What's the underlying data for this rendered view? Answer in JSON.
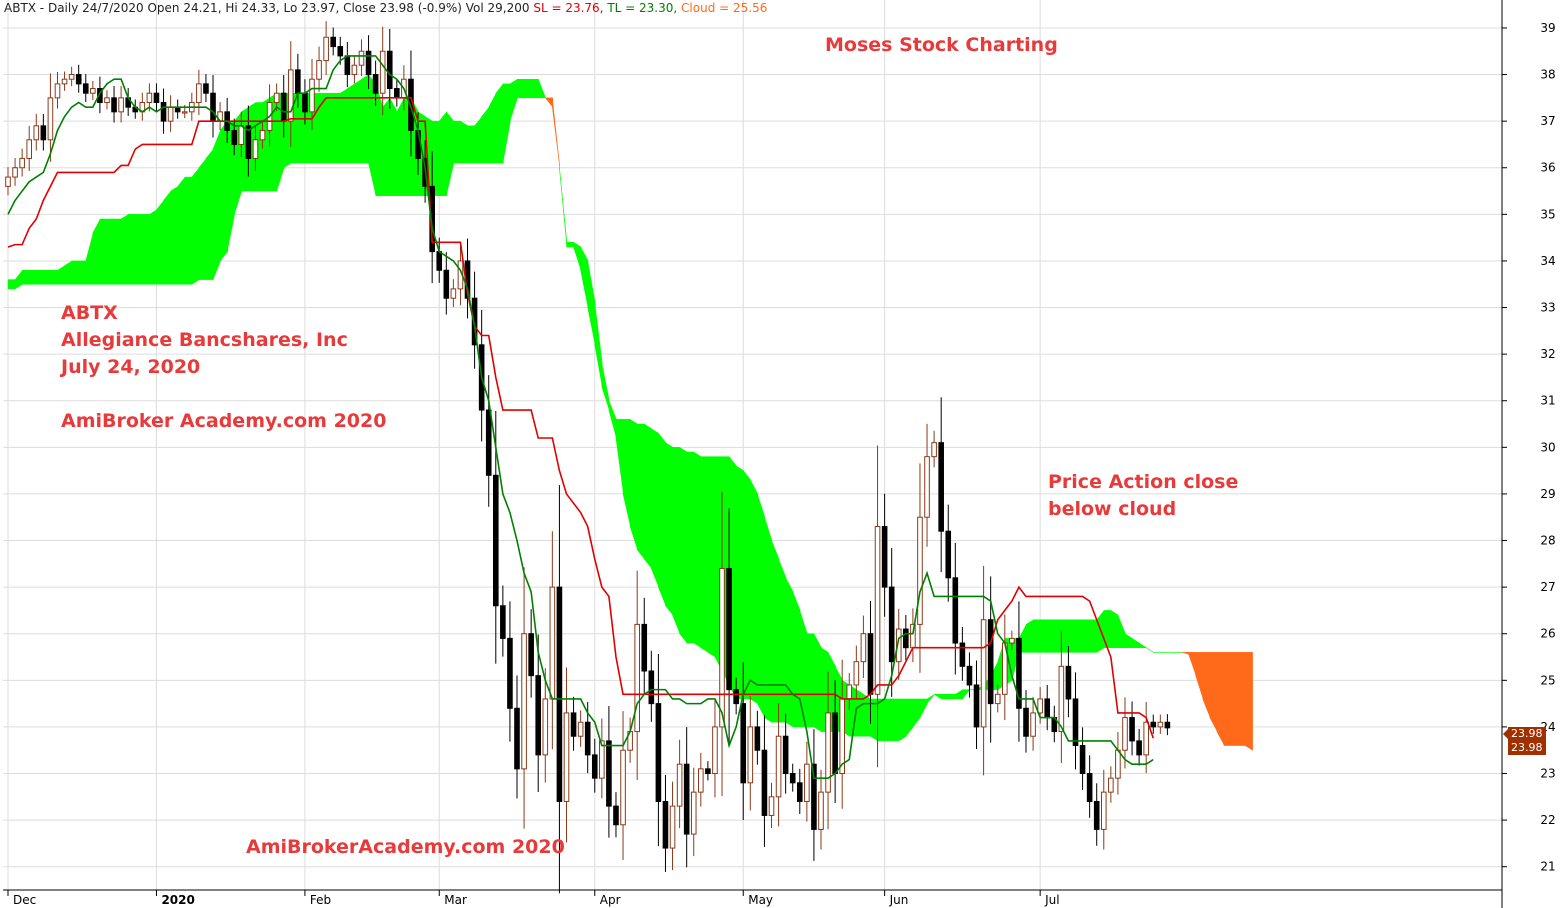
{
  "header": {
    "symbol_info": "ABTX - Daily 24/7/2020 Open 24.21, Hi 24.33, Lo 23.97, Close 23.98 (-0.9%) Vol 29,200",
    "sl_text": "SL = 23.76,",
    "tl_text": "TL = 23.30,",
    "cloud_text": "Cloud = 25.56"
  },
  "annotations": {
    "moses": "Moses Stock Charting",
    "ticker": "ABTX",
    "company": "Allegiance Bancshares, Inc",
    "date": "July 24, 2020",
    "academy_left": "AmiBroker Academy.com  2020",
    "academy_bottom": "AmiBrokerAcademy.com  2020",
    "price_action_1": "Price Action close",
    "price_action_2": "below cloud"
  },
  "price_tags": [
    "23.98",
    "23.98"
  ],
  "colors": {
    "bull_cloud": "#00ff00",
    "bear_cloud": "#ff6a1a",
    "kijun": "#e00000",
    "tenkan": "#008000",
    "bull_candle": "#8b3a1a",
    "bear_candle": "#000000",
    "grid": "#dddddd",
    "annotation": "#e83a3a"
  },
  "chart_data": {
    "type": "candlestick",
    "ylim": [
      20.5,
      39.6
    ],
    "y_ticks": [
      21,
      22,
      23,
      24,
      25,
      26,
      27,
      28,
      29,
      30,
      31,
      32,
      33,
      34,
      35,
      36,
      37,
      38,
      39
    ],
    "x_ticks": [
      {
        "label": "Dec",
        "bar": 0
      },
      {
        "label": "2020",
        "bar": 21
      },
      {
        "label": "Feb",
        "bar": 42
      },
      {
        "label": "Mar",
        "bar": 61
      },
      {
        "label": "Apr",
        "bar": 83
      },
      {
        "label": "May",
        "bar": 104
      },
      {
        "label": "Jun",
        "bar": 124
      },
      {
        "label": "Jul",
        "bar": 146
      }
    ],
    "total_bars": 188,
    "price_bars": 163,
    "close": [
      35.8,
      36.0,
      36.2,
      36.6,
      36.9,
      36.6,
      37.5,
      37.8,
      37.9,
      38.0,
      37.8,
      37.6,
      37.7,
      37.4,
      37.5,
      37.2,
      37.5,
      37.3,
      37.2,
      37.4,
      37.6,
      37.4,
      37.0,
      37.3,
      37.2,
      37.2,
      37.4,
      37.8,
      37.6,
      37.0,
      37.2,
      36.8,
      36.5,
      36.9,
      36.2,
      36.6,
      36.8,
      37.4,
      37.6,
      37.0,
      38.1,
      37.6,
      37.2,
      37.9,
      38.3,
      38.8,
      38.6,
      38.4,
      38.0,
      38.2,
      38.5,
      38.0,
      37.6,
      38.5,
      37.7,
      37.5,
      37.9,
      36.8,
      36.2,
      35.6,
      34.2,
      33.8,
      33.2,
      33.4,
      34.0,
      33.2,
      32.2,
      30.8,
      29.4,
      26.6,
      25.9,
      24.4,
      23.1,
      26.0,
      25.1,
      23.4,
      24.6,
      27.0,
      22.4,
      24.3,
      23.8,
      24.1,
      23.4,
      22.9,
      23.7,
      22.3,
      21.9,
      23.5,
      23.9,
      26.2,
      25.2,
      24.5,
      22.4,
      21.4,
      22.3,
      23.2,
      21.7,
      22.6,
      23.1,
      23.0,
      24.0,
      27.4,
      24.8,
      24.5,
      22.8,
      24.0,
      23.5,
      22.1,
      22.5,
      23.8,
      23.0,
      22.8,
      22.4,
      23.2,
      21.8,
      22.6,
      24.3,
      23.0,
      24.6,
      24.9,
      25.4,
      26.0,
      24.7,
      28.3,
      27.0,
      25.4,
      26.1,
      25.7,
      26.2,
      28.5,
      29.8,
      30.1,
      28.2,
      27.2,
      25.8,
      25.3,
      24.9,
      24.0,
      26.3,
      24.5,
      24.7,
      25.8,
      25.9,
      24.4,
      23.8,
      24.3,
      24.6,
      24.2,
      23.9,
      25.3,
      24.6,
      23.6,
      23.0,
      22.4,
      21.8,
      22.6,
      22.9,
      23.5,
      24.2,
      23.7,
      23.4,
      24.1,
      24.0,
      24.1,
      23.98
    ],
    "series": [
      {
        "name": "SL",
        "values": [
          34.3,
          34.35,
          34.35,
          34.7,
          34.9,
          35.3,
          35.6,
          35.9,
          35.9,
          35.9,
          35.9,
          35.9,
          35.9,
          35.9,
          35.9,
          35.9,
          36.05,
          36.05,
          36.4,
          36.5,
          36.5,
          36.5,
          36.5,
          36.5,
          36.5,
          36.5,
          36.5,
          37.0,
          37.0,
          37.0,
          37.0,
          37.0,
          37.0,
          37.0,
          37.0,
          37.0,
          37.0,
          37.0,
          37.0,
          37.0,
          37.05,
          37.05,
          37.05,
          37.05,
          37.3,
          37.5,
          37.5,
          37.5,
          37.5,
          37.5,
          37.5,
          37.5,
          37.5,
          37.5,
          37.5,
          37.5,
          37.5,
          37.5,
          37.0,
          37.0,
          34.4,
          34.4,
          34.4,
          34.4,
          34.4,
          33.3,
          32.6,
          32.4,
          32.4,
          31.5,
          30.8,
          30.8,
          30.8,
          30.8,
          30.8,
          30.2,
          30.2,
          30.2,
          29.5,
          29.0,
          28.8,
          28.6,
          28.3,
          27.6,
          27.0,
          26.8,
          25.5,
          24.7,
          24.7,
          24.7,
          24.7,
          24.7,
          24.7,
          24.7,
          24.7,
          24.7,
          24.7,
          24.7,
          24.7,
          24.7,
          24.7,
          24.7,
          24.7,
          24.7,
          24.7,
          24.7,
          24.7,
          24.7,
          24.7,
          24.7,
          24.7,
          24.7,
          24.7,
          24.7,
          24.7,
          24.7,
          24.7,
          24.7,
          24.6,
          24.6,
          24.6,
          24.6,
          24.7,
          24.9,
          24.9,
          24.9,
          25.1,
          25.4,
          25.7,
          25.7,
          25.7,
          25.7,
          25.7,
          25.7,
          25.7,
          25.7,
          25.7,
          25.7,
          25.7,
          25.8,
          26.3,
          26.5,
          26.7,
          27.0,
          26.8,
          26.8,
          26.8,
          26.8,
          26.8,
          26.8,
          26.8,
          26.8,
          26.8,
          26.7,
          26.3,
          25.9,
          25.5,
          24.3,
          24.3,
          24.3,
          24.3,
          24.2,
          23.76
        ]
      },
      {
        "name": "TL",
        "values": [
          35.0,
          35.3,
          35.5,
          35.7,
          35.8,
          35.9,
          36.3,
          36.8,
          37.1,
          37.3,
          37.4,
          37.3,
          37.3,
          37.6,
          37.8,
          37.9,
          37.9,
          37.5,
          37.3,
          37.2,
          37.3,
          37.2,
          37.3,
          37.3,
          37.3,
          37.3,
          37.3,
          37.3,
          37.3,
          37.2,
          37.0,
          37.0,
          36.9,
          36.9,
          36.8,
          36.9,
          37.0,
          37.1,
          37.3,
          37.2,
          37.2,
          37.6,
          37.6,
          37.7,
          37.7,
          37.7,
          38.1,
          38.3,
          38.4,
          38.4,
          38.4,
          38.4,
          38.4,
          38.2,
          38.0,
          37.9,
          37.7,
          37.3,
          36.8,
          36.0,
          34.7,
          34.2,
          34.1,
          34.0,
          33.8,
          33.4,
          32.6,
          31.5,
          31.0,
          30.0,
          29.0,
          28.6,
          28.0,
          27.3,
          26.9,
          25.6,
          25.0,
          24.6,
          24.6,
          24.6,
          24.6,
          24.6,
          24.3,
          24.1,
          23.6,
          23.6,
          23.6,
          23.6,
          23.9,
          24.5,
          24.7,
          24.8,
          24.8,
          24.8,
          24.6,
          24.6,
          24.5,
          24.5,
          24.5,
          24.6,
          24.6,
          24.3,
          23.6,
          24.0,
          24.7,
          25.0,
          24.9,
          24.9,
          24.9,
          24.9,
          24.9,
          24.7,
          24.6,
          23.9,
          22.9,
          22.9,
          22.9,
          23.0,
          23.2,
          23.3,
          24.4,
          24.5,
          24.5,
          24.5,
          24.6,
          25.1,
          25.9,
          26.0,
          26.0,
          26.9,
          27.3,
          26.8,
          26.8,
          26.8,
          26.8,
          26.8,
          26.8,
          26.8,
          26.8,
          26.7,
          26.0,
          25.8,
          25.1,
          24.6,
          24.6,
          24.6,
          24.2,
          24.2,
          24.2,
          24.0,
          23.7,
          23.7,
          23.7,
          23.7,
          23.7,
          23.7,
          23.7,
          23.5,
          23.3,
          23.2,
          23.2,
          23.2,
          23.3
        ]
      },
      {
        "name": "Cloud",
        "span_a": [
          33.6,
          33.6,
          33.8,
          33.8,
          33.8,
          33.8,
          33.8,
          33.8,
          33.9,
          34.0,
          34.0,
          34.0,
          34.6,
          34.9,
          34.9,
          34.9,
          34.9,
          35.0,
          35.0,
          35.0,
          35.0,
          35.1,
          35.3,
          35.5,
          35.6,
          35.8,
          35.8,
          36.0,
          36.2,
          36.4,
          36.8,
          37.0,
          37.0,
          37.2,
          37.3,
          37.4,
          37.4,
          37.5,
          37.6,
          37.6,
          37.6,
          37.6,
          37.6,
          37.6,
          37.6,
          37.6,
          37.6,
          37.6,
          37.7,
          37.8,
          37.9,
          38.0,
          37.8,
          37.3,
          37.5,
          37.2,
          37.5,
          37.5,
          37.2,
          37.1,
          37.0,
          37.0,
          37.2,
          37.0,
          37.0,
          36.9,
          36.9,
          37.1,
          37.3,
          37.6,
          37.8,
          37.8,
          37.9,
          37.9,
          37.9,
          37.9,
          37.5,
          37.3,
          36.0,
          34.4,
          34.4,
          34.3,
          34.0,
          33.1,
          31.8,
          31.0,
          30.6,
          30.6,
          30.6,
          30.5,
          30.5,
          30.4,
          30.3,
          30.1,
          30.0,
          30.0,
          29.9,
          29.9,
          29.8,
          29.8,
          29.8,
          29.8,
          29.8,
          29.6,
          29.5,
          29.3,
          29.0,
          28.5,
          28.0,
          27.6,
          27.2,
          26.9,
          26.5,
          26.0,
          26.0,
          25.7,
          25.6,
          25.3,
          25.0,
          24.9,
          24.8,
          24.7,
          24.6,
          24.6,
          24.6,
          24.6,
          24.6,
          24.6,
          24.6,
          24.6,
          24.6,
          24.7,
          24.7,
          24.7,
          24.7,
          24.8,
          24.8,
          24.8,
          24.9,
          25.1,
          25.4,
          25.9,
          25.9,
          25.9,
          26.2,
          26.3,
          26.3,
          26.3,
          26.3,
          26.3,
          26.3,
          26.3,
          26.3,
          26.3,
          26.3,
          26.5,
          26.5,
          26.4,
          26.0,
          25.9,
          25.8,
          25.7,
          25.6,
          25.6,
          25.6,
          25.6,
          25.6,
          25.56,
          25.1,
          24.6,
          24.2,
          23.9,
          23.6,
          23.6,
          23.6,
          23.6,
          23.5
        ],
        "span_b": [
          33.4,
          33.4,
          33.5,
          33.5,
          33.5,
          33.5,
          33.5,
          33.5,
          33.5,
          33.5,
          33.5,
          33.5,
          33.5,
          33.5,
          33.5,
          33.5,
          33.5,
          33.5,
          33.5,
          33.5,
          33.5,
          33.5,
          33.5,
          33.5,
          33.5,
          33.5,
          33.5,
          33.6,
          33.6,
          33.6,
          34.0,
          34.2,
          35.0,
          35.5,
          35.5,
          35.5,
          35.5,
          35.5,
          35.5,
          36.0,
          36.1,
          36.1,
          36.1,
          36.1,
          36.1,
          36.1,
          36.1,
          36.1,
          36.1,
          36.1,
          36.1,
          36.1,
          35.4,
          35.4,
          35.4,
          35.4,
          35.4,
          35.4,
          35.4,
          35.4,
          35.4,
          35.4,
          35.4,
          36.1,
          36.1,
          36.1,
          36.1,
          36.1,
          36.1,
          36.1,
          36.1,
          37.0,
          37.5,
          37.5,
          37.5,
          37.5,
          37.5,
          37.5,
          36.0,
          34.3,
          34.3,
          33.8,
          33.0,
          32.2,
          31.3,
          30.8,
          30.2,
          29.0,
          28.3,
          27.8,
          27.6,
          27.4,
          27.0,
          26.6,
          26.4,
          26.0,
          25.8,
          25.8,
          25.7,
          25.6,
          25.5,
          25.2,
          24.9,
          24.6,
          24.6,
          24.6,
          24.5,
          24.2,
          24.1,
          24.1,
          24.1,
          24.0,
          24.0,
          24.0,
          24.0,
          23.9,
          23.9,
          23.9,
          23.9,
          23.8,
          23.8,
          23.8,
          23.8,
          23.7,
          23.7,
          23.7,
          23.7,
          23.8,
          24.0,
          24.2,
          24.5,
          24.7,
          24.6,
          24.6,
          24.6,
          24.6,
          24.8,
          24.8,
          24.8,
          24.8,
          24.8,
          24.9,
          25.0,
          25.6,
          25.6,
          25.6,
          25.6,
          25.6,
          25.6,
          25.6,
          25.6,
          25.6,
          25.6,
          25.6,
          25.6,
          25.7,
          25.7,
          25.7,
          25.7,
          25.7,
          25.7,
          25.7,
          25.6,
          25.6,
          25.6,
          25.6,
          25.6,
          25.6,
          25.6,
          25.6,
          25.6,
          25.6,
          25.6,
          25.6,
          25.6,
          25.6,
          25.6
        ]
      }
    ]
  }
}
